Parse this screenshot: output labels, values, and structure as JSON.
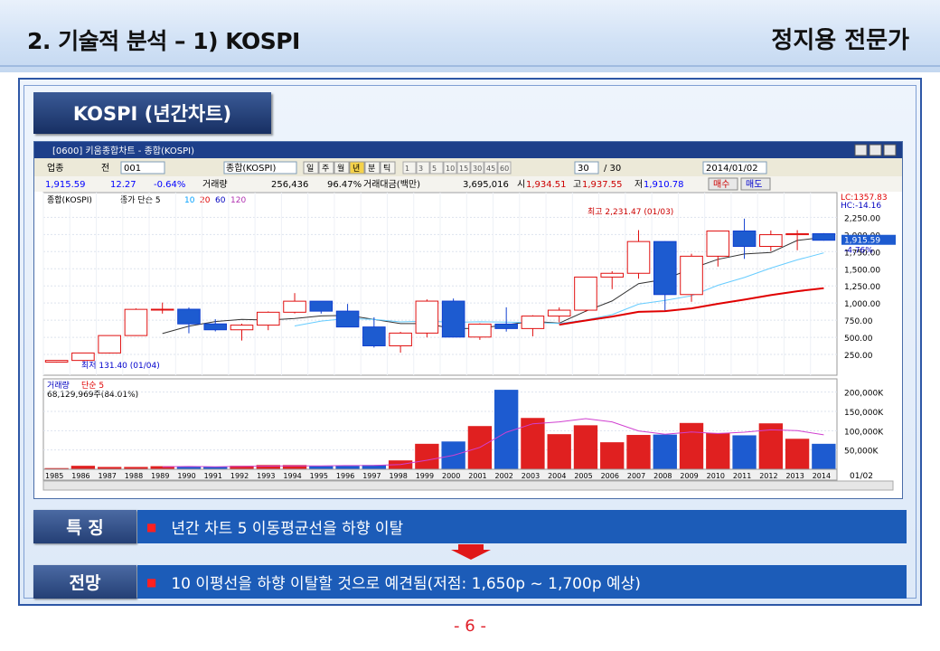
{
  "header": {
    "title": "2. 기술적 분석 – 1) KOSPI",
    "brand": "정지용 전문가"
  },
  "section_label": "KOSPI (년간차트)",
  "window": {
    "title": "[0600] 키움종합차트 - 종합(KOSPI)",
    "market": "업종",
    "period_select": "전",
    "code": "001",
    "name": "종합(KOSPI)",
    "period_tabs": [
      "일",
      "주",
      "월",
      "년",
      "분",
      "틱"
    ],
    "minute_tabs": [
      "1",
      "3",
      "5",
      "10",
      "15",
      "30",
      "45",
      "60"
    ],
    "count": "30",
    "count_total": "/ 30",
    "date": "2014/01/02",
    "price": "1,915.59",
    "change": "12.27",
    "change_pct": "-0.64%",
    "vol_label": "거래량",
    "vol": "256,436",
    "vol_pct": "96.47%",
    "amount_label": "거래대금(백만)",
    "amount": "3,695,016",
    "open_label": "시",
    "open": "1,934.51",
    "high_label": "고",
    "high": "1,937.55",
    "low_label": "저",
    "low": "1,910.78",
    "buy_btn": "매수",
    "sell_btn": "매도"
  },
  "chart_data": {
    "type": "candlestick",
    "x": [
      "1985",
      "1986",
      "1987",
      "1988",
      "1989",
      "1990",
      "1991",
      "1992",
      "1993",
      "1994",
      "1995",
      "1996",
      "1997",
      "1998",
      "1999",
      "2000",
      "2001",
      "2002",
      "2003",
      "2004",
      "2005",
      "2006",
      "2007",
      "2008",
      "2009",
      "2010",
      "2011",
      "2012",
      "2013",
      "2014"
    ],
    "ohlc": [
      [
        139,
        163,
        131,
        163
      ],
      [
        163,
        272,
        150,
        272
      ],
      [
        272,
        526,
        264,
        526
      ],
      [
        526,
        922,
        520,
        908
      ],
      [
        908,
        1007,
        846,
        910
      ],
      [
        910,
        935,
        559,
        696
      ],
      [
        696,
        764,
        587,
        610
      ],
      [
        610,
        699,
        454,
        678
      ],
      [
        678,
        878,
        604,
        866
      ],
      [
        866,
        1145,
        848,
        1027
      ],
      [
        1027,
        1016,
        847,
        882
      ],
      [
        882,
        987,
        651,
        651
      ],
      [
        651,
        792,
        351,
        376
      ],
      [
        376,
        579,
        277,
        562
      ],
      [
        562,
        1053,
        499,
        1028
      ],
      [
        1028,
        1066,
        500,
        504
      ],
      [
        504,
        704,
        463,
        693
      ],
      [
        693,
        938,
        584,
        628
      ],
      [
        628,
        822,
        515,
        810
      ],
      [
        810,
        936,
        719,
        896
      ],
      [
        896,
        1379,
        870,
        1379
      ],
      [
        1379,
        1465,
        1203,
        1434
      ],
      [
        1434,
        2064,
        1355,
        1897
      ],
      [
        1897,
        1901,
        892,
        1124
      ],
      [
        1124,
        1719,
        1018,
        1683
      ],
      [
        1683,
        2052,
        1532,
        2051
      ],
      [
        2051,
        2231,
        1644,
        1826
      ],
      [
        1826,
        2058,
        1758,
        1997
      ],
      [
        1997,
        2063,
        1770,
        2011
      ],
      [
        2011,
        2020,
        1910,
        1916
      ]
    ],
    "ma_series": [
      "5",
      "10",
      "20",
      "60",
      "120"
    ],
    "price_axis": [
      "2,250.00",
      "2,000.00",
      "1,750.00",
      "1,500.00",
      "1,250.00",
      "1,000.00",
      "750.00",
      "500.00",
      "250.00"
    ],
    "price_ylim": [
      0,
      2400
    ],
    "current_price": "1,915.59",
    "current_pct": "-4.76%",
    "lc": "LC:1357.83",
    "hc": "HC:-14.16",
    "annot_high": "최고 2,231.47 (01/03)",
    "annot_low": "최저 131.40 (01/04)",
    "price_legend": [
      "종합(KOSPI)",
      "종가 단순 5"
    ],
    "volume_legend": [
      "거래량",
      "단순 5"
    ],
    "volume_value": "68,129,969주(84.01%)",
    "volume": [
      3,
      9,
      6,
      6,
      8,
      7,
      6,
      9,
      11,
      11,
      8,
      9,
      11,
      23,
      66,
      72,
      112,
      206,
      133,
      91,
      114,
      70,
      89,
      90,
      120,
      94,
      88,
      119,
      79,
      66
    ],
    "volume_axis": [
      "200,000K",
      "150,000K",
      "100,000K",
      "50,000K"
    ],
    "volume_ylim": [
      0,
      225
    ],
    "date_label": "01/02"
  },
  "feature": {
    "label": "특 징",
    "text": "년간 차트 5 이동평균선을 하향 이탈"
  },
  "outlook": {
    "label": "전망",
    "text": "10 이평선을 하향 이탈할 것으로 예견됨(저점: 1,650p ~ 1,700p 예상)"
  },
  "page_number": "- 6 -"
}
